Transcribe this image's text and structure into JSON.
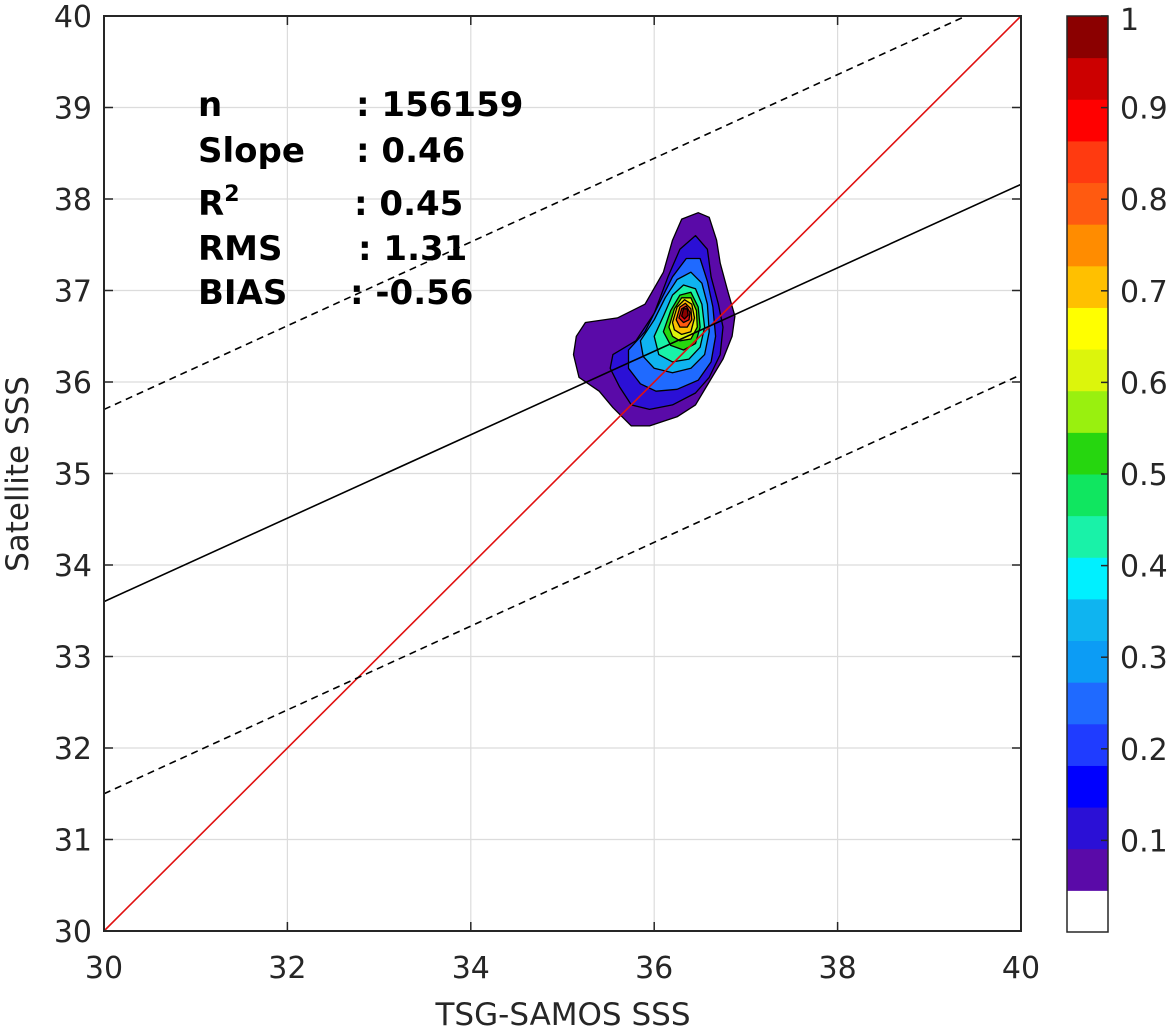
{
  "chart_data": {
    "type": "contour",
    "xlabel": "TSG-SAMOS SSS",
    "ylabel": "Satellite SSS",
    "xlim": [
      30,
      40
    ],
    "ylim": [
      30,
      40
    ],
    "xticks": [
      "30",
      "32",
      "34",
      "36",
      "38",
      "40"
    ],
    "yticks": [
      "30",
      "31",
      "32",
      "33",
      "34",
      "35",
      "36",
      "37",
      "38",
      "39",
      "40"
    ],
    "grid": true,
    "stats": {
      "n_label": "n",
      "n_value": ": 156159",
      "slope_label": "Slope",
      "slope_value": ": 0.46",
      "r2_label": "R",
      "r2_sup": "2",
      "r2_value": ": 0.45",
      "rms_label": "RMS",
      "rms_value": ": 1.31",
      "bias_label": "BIAS",
      "bias_value": ": -0.56"
    },
    "lines": [
      {
        "role": "one-to-one",
        "color": "#e01010",
        "style": "solid",
        "x": [
          30,
          40
        ],
        "y": [
          30,
          40
        ]
      },
      {
        "role": "regression",
        "color": "#000000",
        "style": "solid",
        "x": [
          30,
          40
        ],
        "y": [
          33.6,
          38.16
        ]
      },
      {
        "role": "regression-upper-bound",
        "color": "#000000",
        "style": "dashed",
        "x": [
          30,
          39.4
        ],
        "y": [
          35.7,
          40
        ]
      },
      {
        "role": "regression-lower-bound",
        "color": "#000000",
        "style": "dashed",
        "x": [
          30,
          40
        ],
        "y": [
          31.5,
          36.08
        ]
      }
    ],
    "density_peak": {
      "x": 36.32,
      "y": 36.77
    },
    "density_contours": [
      {
        "level": 0.05,
        "color": "#5a0aa8",
        "points": [
          [
            35.25,
            36.65
          ],
          [
            35.6,
            36.7
          ],
          [
            35.9,
            36.85
          ],
          [
            36.1,
            37.2
          ],
          [
            36.2,
            37.55
          ],
          [
            36.3,
            37.78
          ],
          [
            36.48,
            37.85
          ],
          [
            36.6,
            37.8
          ],
          [
            36.68,
            37.55
          ],
          [
            36.72,
            37.3
          ],
          [
            36.8,
            37.0
          ],
          [
            36.88,
            36.72
          ],
          [
            36.85,
            36.5
          ],
          [
            36.75,
            36.25
          ],
          [
            36.6,
            36.0
          ],
          [
            36.45,
            35.75
          ],
          [
            36.25,
            35.62
          ],
          [
            35.95,
            35.52
          ],
          [
            35.75,
            35.52
          ],
          [
            35.55,
            35.72
          ],
          [
            35.4,
            35.9
          ],
          [
            35.18,
            36.05
          ],
          [
            35.12,
            36.3
          ],
          [
            35.15,
            36.5
          ]
        ]
      },
      {
        "level": 0.1,
        "color": "#2b10d6",
        "points": [
          [
            35.55,
            36.3
          ],
          [
            35.8,
            36.45
          ],
          [
            36.0,
            36.75
          ],
          [
            36.15,
            37.15
          ],
          [
            36.28,
            37.45
          ],
          [
            36.45,
            37.6
          ],
          [
            36.58,
            37.45
          ],
          [
            36.62,
            37.15
          ],
          [
            36.7,
            36.85
          ],
          [
            36.75,
            36.6
          ],
          [
            36.72,
            36.3
          ],
          [
            36.6,
            36.05
          ],
          [
            36.45,
            35.88
          ],
          [
            36.2,
            35.75
          ],
          [
            35.95,
            35.7
          ],
          [
            35.75,
            35.75
          ],
          [
            35.62,
            35.95
          ],
          [
            35.52,
            36.15
          ]
        ]
      },
      {
        "level": 0.2,
        "color": "#1f6aff",
        "points": [
          [
            35.72,
            36.35
          ],
          [
            35.9,
            36.55
          ],
          [
            36.05,
            36.85
          ],
          [
            36.2,
            37.15
          ],
          [
            36.35,
            37.35
          ],
          [
            36.5,
            37.35
          ],
          [
            36.58,
            37.1
          ],
          [
            36.64,
            36.82
          ],
          [
            36.67,
            36.5
          ],
          [
            36.62,
            36.22
          ],
          [
            36.48,
            36.02
          ],
          [
            36.25,
            35.92
          ],
          [
            36.02,
            35.9
          ],
          [
            35.85,
            35.98
          ],
          [
            35.72,
            36.15
          ]
        ]
      },
      {
        "level": 0.3,
        "color": "#0fb4f0",
        "points": [
          [
            35.85,
            36.45
          ],
          [
            36.0,
            36.68
          ],
          [
            36.12,
            36.92
          ],
          [
            36.25,
            37.12
          ],
          [
            36.4,
            37.2
          ],
          [
            36.52,
            37.08
          ],
          [
            36.58,
            36.85
          ],
          [
            36.6,
            36.55
          ],
          [
            36.55,
            36.3
          ],
          [
            36.4,
            36.15
          ],
          [
            36.2,
            36.1
          ],
          [
            36.0,
            36.15
          ],
          [
            35.88,
            36.28
          ]
        ]
      },
      {
        "level": 0.4,
        "color": "#19f2a8",
        "points": [
          [
            36.0,
            36.5
          ],
          [
            36.1,
            36.72
          ],
          [
            36.2,
            36.95
          ],
          [
            36.32,
            37.06
          ],
          [
            36.45,
            37.02
          ],
          [
            36.52,
            36.85
          ],
          [
            36.55,
            36.6
          ],
          [
            36.5,
            36.38
          ],
          [
            36.38,
            36.25
          ],
          [
            36.2,
            36.22
          ],
          [
            36.05,
            36.3
          ]
        ]
      },
      {
        "level": 0.5,
        "color": "#26d60f",
        "points": [
          [
            36.1,
            36.55
          ],
          [
            36.18,
            36.78
          ],
          [
            36.28,
            36.95
          ],
          [
            36.4,
            36.98
          ],
          [
            36.48,
            36.82
          ],
          [
            36.5,
            36.6
          ],
          [
            36.45,
            36.42
          ],
          [
            36.32,
            36.35
          ],
          [
            36.18,
            36.4
          ]
        ]
      },
      {
        "level": 0.6,
        "color": "#dcf50c",
        "points": [
          [
            36.16,
            36.6
          ],
          [
            36.22,
            36.8
          ],
          [
            36.3,
            36.92
          ],
          [
            36.4,
            36.92
          ],
          [
            36.46,
            36.78
          ],
          [
            36.47,
            36.6
          ],
          [
            36.4,
            36.47
          ],
          [
            36.28,
            36.45
          ],
          [
            36.2,
            36.5
          ]
        ]
      },
      {
        "level": 0.7,
        "color": "#ffc000",
        "points": [
          [
            36.2,
            36.65
          ],
          [
            36.25,
            36.82
          ],
          [
            36.33,
            36.9
          ],
          [
            36.41,
            36.85
          ],
          [
            36.44,
            36.7
          ],
          [
            36.4,
            36.55
          ],
          [
            36.3,
            36.52
          ],
          [
            36.22,
            36.57
          ]
        ]
      },
      {
        "level": 0.8,
        "color": "#ff5a10",
        "points": [
          [
            36.24,
            36.68
          ],
          [
            36.28,
            36.82
          ],
          [
            36.34,
            36.86
          ],
          [
            36.4,
            36.8
          ],
          [
            36.41,
            36.68
          ],
          [
            36.36,
            36.6
          ],
          [
            36.28,
            36.6
          ]
        ]
      },
      {
        "level": 0.9,
        "color": "#e01010",
        "points": [
          [
            36.27,
            36.7
          ],
          [
            36.3,
            36.8
          ],
          [
            36.35,
            36.83
          ],
          [
            36.39,
            36.76
          ],
          [
            36.38,
            36.68
          ],
          [
            36.32,
            36.65
          ]
        ]
      },
      {
        "level": 1.0,
        "color": "#8b0000",
        "points": [
          [
            36.3,
            36.72
          ],
          [
            36.32,
            36.8
          ],
          [
            36.36,
            36.8
          ],
          [
            36.37,
            36.73
          ],
          [
            36.33,
            36.69
          ]
        ]
      }
    ],
    "colorbar": {
      "ticks": [
        "1",
        "0.9",
        "0.8",
        "0.7",
        "0.6",
        "0.5",
        "0.4",
        "0.3",
        "0.2",
        "0.1"
      ],
      "tick_values": [
        1,
        0.9,
        0.8,
        0.7,
        0.6,
        0.5,
        0.4,
        0.3,
        0.2,
        0.1
      ],
      "range": [
        0,
        1
      ],
      "colors": [
        "#ffffff",
        "#5a0aa8",
        "#2b10d6",
        "#0000ff",
        "#1f3cff",
        "#1f6aff",
        "#0c9cf5",
        "#0fb4f0",
        "#00f0ff",
        "#19f2a8",
        "#10e660",
        "#26d60f",
        "#99f00f",
        "#dcf50c",
        "#ffff00",
        "#ffc000",
        "#ff8c00",
        "#ff5a10",
        "#ff3a10",
        "#ff0000",
        "#cc0000",
        "#8b0000"
      ]
    }
  }
}
